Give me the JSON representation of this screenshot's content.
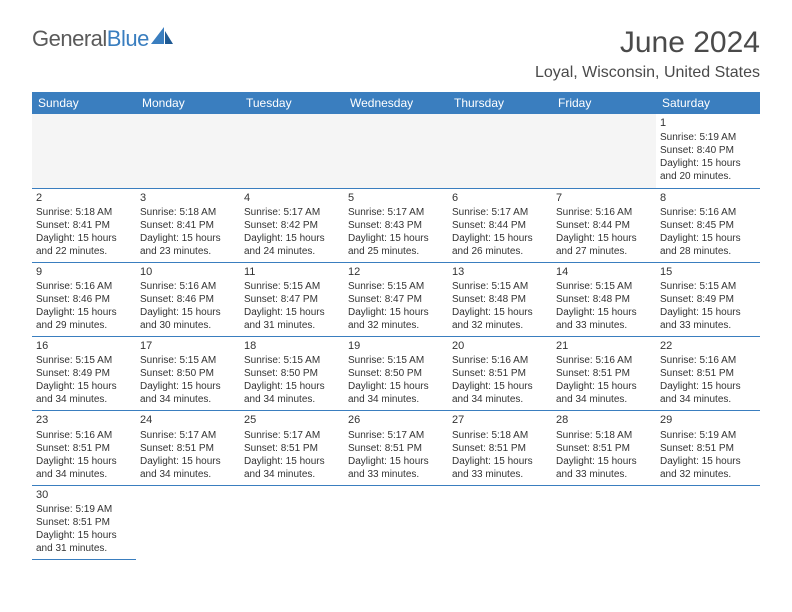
{
  "brand": {
    "part1": "General",
    "part2": "Blue"
  },
  "title": "June 2024",
  "location": "Loyal, Wisconsin, United States",
  "colors": {
    "header_bg": "#3a7ebf",
    "header_fg": "#ffffff",
    "rule": "#3a7ebf",
    "empty_bg": "#f5f5f5",
    "text": "#333333",
    "page_bg": "#ffffff"
  },
  "weekdays": [
    "Sunday",
    "Monday",
    "Tuesday",
    "Wednesday",
    "Thursday",
    "Friday",
    "Saturday"
  ],
  "weeks": [
    [
      null,
      null,
      null,
      null,
      null,
      null,
      {
        "n": "1",
        "sunrise": "Sunrise: 5:19 AM",
        "sunset": "Sunset: 8:40 PM",
        "day1": "Daylight: 15 hours",
        "day2": "and 20 minutes."
      }
    ],
    [
      {
        "n": "2",
        "sunrise": "Sunrise: 5:18 AM",
        "sunset": "Sunset: 8:41 PM",
        "day1": "Daylight: 15 hours",
        "day2": "and 22 minutes."
      },
      {
        "n": "3",
        "sunrise": "Sunrise: 5:18 AM",
        "sunset": "Sunset: 8:41 PM",
        "day1": "Daylight: 15 hours",
        "day2": "and 23 minutes."
      },
      {
        "n": "4",
        "sunrise": "Sunrise: 5:17 AM",
        "sunset": "Sunset: 8:42 PM",
        "day1": "Daylight: 15 hours",
        "day2": "and 24 minutes."
      },
      {
        "n": "5",
        "sunrise": "Sunrise: 5:17 AM",
        "sunset": "Sunset: 8:43 PM",
        "day1": "Daylight: 15 hours",
        "day2": "and 25 minutes."
      },
      {
        "n": "6",
        "sunrise": "Sunrise: 5:17 AM",
        "sunset": "Sunset: 8:44 PM",
        "day1": "Daylight: 15 hours",
        "day2": "and 26 minutes."
      },
      {
        "n": "7",
        "sunrise": "Sunrise: 5:16 AM",
        "sunset": "Sunset: 8:44 PM",
        "day1": "Daylight: 15 hours",
        "day2": "and 27 minutes."
      },
      {
        "n": "8",
        "sunrise": "Sunrise: 5:16 AM",
        "sunset": "Sunset: 8:45 PM",
        "day1": "Daylight: 15 hours",
        "day2": "and 28 minutes."
      }
    ],
    [
      {
        "n": "9",
        "sunrise": "Sunrise: 5:16 AM",
        "sunset": "Sunset: 8:46 PM",
        "day1": "Daylight: 15 hours",
        "day2": "and 29 minutes."
      },
      {
        "n": "10",
        "sunrise": "Sunrise: 5:16 AM",
        "sunset": "Sunset: 8:46 PM",
        "day1": "Daylight: 15 hours",
        "day2": "and 30 minutes."
      },
      {
        "n": "11",
        "sunrise": "Sunrise: 5:15 AM",
        "sunset": "Sunset: 8:47 PM",
        "day1": "Daylight: 15 hours",
        "day2": "and 31 minutes."
      },
      {
        "n": "12",
        "sunrise": "Sunrise: 5:15 AM",
        "sunset": "Sunset: 8:47 PM",
        "day1": "Daylight: 15 hours",
        "day2": "and 32 minutes."
      },
      {
        "n": "13",
        "sunrise": "Sunrise: 5:15 AM",
        "sunset": "Sunset: 8:48 PM",
        "day1": "Daylight: 15 hours",
        "day2": "and 32 minutes."
      },
      {
        "n": "14",
        "sunrise": "Sunrise: 5:15 AM",
        "sunset": "Sunset: 8:48 PM",
        "day1": "Daylight: 15 hours",
        "day2": "and 33 minutes."
      },
      {
        "n": "15",
        "sunrise": "Sunrise: 5:15 AM",
        "sunset": "Sunset: 8:49 PM",
        "day1": "Daylight: 15 hours",
        "day2": "and 33 minutes."
      }
    ],
    [
      {
        "n": "16",
        "sunrise": "Sunrise: 5:15 AM",
        "sunset": "Sunset: 8:49 PM",
        "day1": "Daylight: 15 hours",
        "day2": "and 34 minutes."
      },
      {
        "n": "17",
        "sunrise": "Sunrise: 5:15 AM",
        "sunset": "Sunset: 8:50 PM",
        "day1": "Daylight: 15 hours",
        "day2": "and 34 minutes."
      },
      {
        "n": "18",
        "sunrise": "Sunrise: 5:15 AM",
        "sunset": "Sunset: 8:50 PM",
        "day1": "Daylight: 15 hours",
        "day2": "and 34 minutes."
      },
      {
        "n": "19",
        "sunrise": "Sunrise: 5:15 AM",
        "sunset": "Sunset: 8:50 PM",
        "day1": "Daylight: 15 hours",
        "day2": "and 34 minutes."
      },
      {
        "n": "20",
        "sunrise": "Sunrise: 5:16 AM",
        "sunset": "Sunset: 8:51 PM",
        "day1": "Daylight: 15 hours",
        "day2": "and 34 minutes."
      },
      {
        "n": "21",
        "sunrise": "Sunrise: 5:16 AM",
        "sunset": "Sunset: 8:51 PM",
        "day1": "Daylight: 15 hours",
        "day2": "and 34 minutes."
      },
      {
        "n": "22",
        "sunrise": "Sunrise: 5:16 AM",
        "sunset": "Sunset: 8:51 PM",
        "day1": "Daylight: 15 hours",
        "day2": "and 34 minutes."
      }
    ],
    [
      {
        "n": "23",
        "sunrise": "Sunrise: 5:16 AM",
        "sunset": "Sunset: 8:51 PM",
        "day1": "Daylight: 15 hours",
        "day2": "and 34 minutes."
      },
      {
        "n": "24",
        "sunrise": "Sunrise: 5:17 AM",
        "sunset": "Sunset: 8:51 PM",
        "day1": "Daylight: 15 hours",
        "day2": "and 34 minutes."
      },
      {
        "n": "25",
        "sunrise": "Sunrise: 5:17 AM",
        "sunset": "Sunset: 8:51 PM",
        "day1": "Daylight: 15 hours",
        "day2": "and 34 minutes."
      },
      {
        "n": "26",
        "sunrise": "Sunrise: 5:17 AM",
        "sunset": "Sunset: 8:51 PM",
        "day1": "Daylight: 15 hours",
        "day2": "and 33 minutes."
      },
      {
        "n": "27",
        "sunrise": "Sunrise: 5:18 AM",
        "sunset": "Sunset: 8:51 PM",
        "day1": "Daylight: 15 hours",
        "day2": "and 33 minutes."
      },
      {
        "n": "28",
        "sunrise": "Sunrise: 5:18 AM",
        "sunset": "Sunset: 8:51 PM",
        "day1": "Daylight: 15 hours",
        "day2": "and 33 minutes."
      },
      {
        "n": "29",
        "sunrise": "Sunrise: 5:19 AM",
        "sunset": "Sunset: 8:51 PM",
        "day1": "Daylight: 15 hours",
        "day2": "and 32 minutes."
      }
    ],
    [
      {
        "n": "30",
        "sunrise": "Sunrise: 5:19 AM",
        "sunset": "Sunset: 8:51 PM",
        "day1": "Daylight: 15 hours",
        "day2": "and 31 minutes."
      },
      "blank",
      "blank",
      "blank",
      "blank",
      "blank",
      "blank"
    ]
  ]
}
